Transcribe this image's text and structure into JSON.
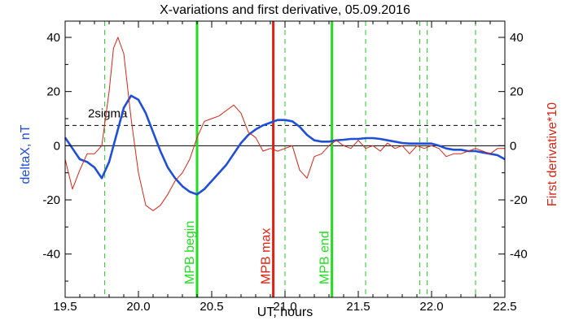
{
  "chart_data": {
    "type": "line",
    "title": "X-variations and first derivative, 05.09.2016",
    "xlabel": "UT, hours",
    "ylabel_left": "deltaX, nT",
    "ylabel_right": "First derivative*10",
    "xlim": [
      19.5,
      22.5
    ],
    "ylim_left": [
      -56,
      46
    ],
    "ylim_right": [
      -56,
      46
    ],
    "x_ticks": [
      19.5,
      20.0,
      20.5,
      21.0,
      21.5,
      22.0,
      22.5
    ],
    "x_tick_labels": [
      "19.5",
      "20.0",
      "20.5",
      "21.0",
      "21.5",
      "22.0",
      "22.5"
    ],
    "y_ticks": [
      -40,
      -20,
      0,
      20,
      40
    ],
    "y_tick_labels": [
      "-40",
      "-20",
      "0",
      "20",
      "40"
    ],
    "colors": {
      "deltaX": "#1f4fd8",
      "derivative": "#d62414",
      "mpb_begin": "#22dd22",
      "mpb_max": "#e02010",
      "mpb_end": "#22dd22",
      "sigma": "#000000",
      "dashed_green": "#22cc22"
    },
    "series": [
      {
        "axis": "left",
        "x": [
          19.5,
          19.55,
          19.6,
          19.65,
          19.7,
          19.75,
          19.8,
          19.85,
          19.9,
          19.95,
          20.0,
          20.05,
          20.1,
          20.15,
          20.2,
          20.25,
          20.3,
          20.35,
          20.4,
          20.45,
          20.5,
          20.55,
          20.6,
          20.65,
          20.7,
          20.75,
          20.8,
          20.85,
          20.9,
          20.95,
          21.0,
          21.05,
          21.1,
          21.15,
          21.2,
          21.25,
          21.3,
          21.35,
          21.4,
          21.45,
          21.5,
          21.55,
          21.6,
          21.65,
          21.7,
          21.75,
          21.8,
          21.85,
          21.9,
          21.95,
          22.0,
          22.05,
          22.1,
          22.15,
          22.2,
          22.25,
          22.3,
          22.35,
          22.4,
          22.45,
          22.5
        ],
        "y": [
          3,
          -1,
          -5,
          -6,
          -8,
          -12,
          -6,
          4,
          14,
          18.5,
          17,
          12,
          5,
          -2,
          -8,
          -12,
          -15,
          -17,
          -18,
          -16,
          -13,
          -10,
          -7,
          -3,
          1,
          4,
          6,
          7.5,
          8.5,
          9.5,
          9.5,
          9,
          7,
          4,
          2,
          1.5,
          1.5,
          2,
          2.2,
          2.5,
          2.5,
          2.8,
          2.8,
          2.5,
          2,
          1.5,
          1,
          0.8,
          0.8,
          0.8,
          0.8,
          0,
          -1,
          -1.5,
          -1.5,
          -2,
          -2,
          -2.5,
          -3,
          -3.5,
          -5
        ]
      },
      {
        "axis": "right",
        "x": [
          19.5,
          19.55,
          19.6,
          19.65,
          19.7,
          19.75,
          19.8,
          19.83,
          19.86,
          19.9,
          19.95,
          20.0,
          20.05,
          20.1,
          20.15,
          20.2,
          20.25,
          20.3,
          20.35,
          20.4,
          20.45,
          20.5,
          20.55,
          20.6,
          20.65,
          20.7,
          20.75,
          20.8,
          20.85,
          20.9,
          20.95,
          21.0,
          21.05,
          21.1,
          21.15,
          21.2,
          21.25,
          21.3,
          21.35,
          21.4,
          21.45,
          21.5,
          21.55,
          21.6,
          21.65,
          21.7,
          21.75,
          21.8,
          21.85,
          21.9,
          21.95,
          22.0,
          22.05,
          22.1,
          22.15,
          22.2,
          22.25,
          22.3,
          22.35,
          22.4,
          22.45,
          22.5
        ],
        "y": [
          -5,
          -16,
          -9,
          -3,
          -3,
          0,
          20,
          36,
          40,
          34,
          10,
          -10,
          -22,
          -24,
          -22,
          -18,
          -13,
          -10,
          -5,
          3,
          9,
          10,
          11,
          13,
          15,
          12,
          5,
          3,
          -2,
          -1,
          -2,
          -1,
          0,
          -9,
          -12,
          -4,
          -3,
          0,
          2,
          0,
          -1,
          2,
          -1,
          0,
          -2,
          1,
          -1,
          0,
          -3,
          0,
          -1,
          0,
          -1,
          -4,
          -3,
          -3,
          -2,
          -1,
          -2,
          -3,
          -1,
          -1
        ]
      }
    ],
    "hlines": {
      "zero": 0,
      "sigma": 7.5,
      "sigma_label": "2sigma"
    },
    "vlines": {
      "mpb_begin": {
        "x": 20.4,
        "label": "MPB begin"
      },
      "mpb_max": {
        "x": 20.92,
        "label": "MPB max"
      },
      "mpb_end": {
        "x": 21.32,
        "label": "MPB end"
      },
      "dashed": [
        19.77,
        21.0,
        21.55,
        21.92,
        21.97,
        22.3
      ]
    }
  }
}
